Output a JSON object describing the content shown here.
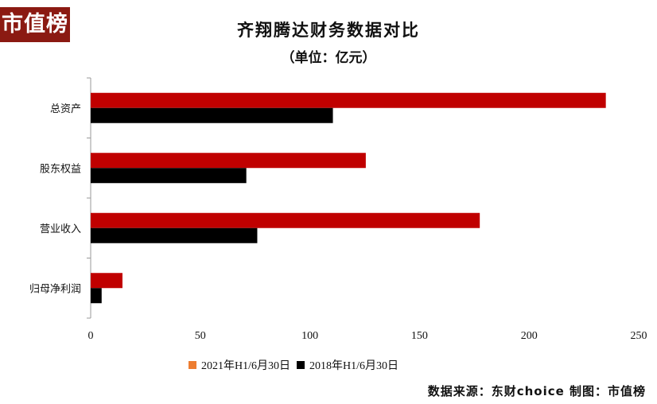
{
  "brand": {
    "logo_text": "市值榜"
  },
  "header": {
    "title": "齐翔腾达财务数据对比",
    "subtitle": "（单位：亿元）"
  },
  "colors": {
    "series_2021": "#c00000",
    "series_2018": "#000000",
    "legend_2021_swatch": "#ed7d31",
    "axis": "#999999"
  },
  "chart_data": {
    "type": "bar",
    "orientation": "horizontal",
    "title": "齐翔腾达财务数据对比",
    "subtitle": "（单位：亿元）",
    "categories": [
      "总资产",
      "股东权益",
      "营业收入",
      "归母净利润"
    ],
    "series": [
      {
        "name": "2021年H1/6月30日",
        "values": [
          235,
          125.5,
          177.5,
          14.5
        ]
      },
      {
        "name": "2018年H1/6月30日",
        "values": [
          110.5,
          71,
          76,
          5
        ]
      }
    ],
    "xlim": [
      0,
      250
    ],
    "xticks": [
      0,
      50,
      100,
      150,
      200,
      250
    ],
    "grid": false,
    "legend_position": "bottom"
  },
  "legend": [
    {
      "label": "2021年H1/6月30日"
    },
    {
      "label": "2018年H1/6月30日"
    }
  ],
  "footer": {
    "source": "数据来源：东财choice 制图：市值榜"
  }
}
